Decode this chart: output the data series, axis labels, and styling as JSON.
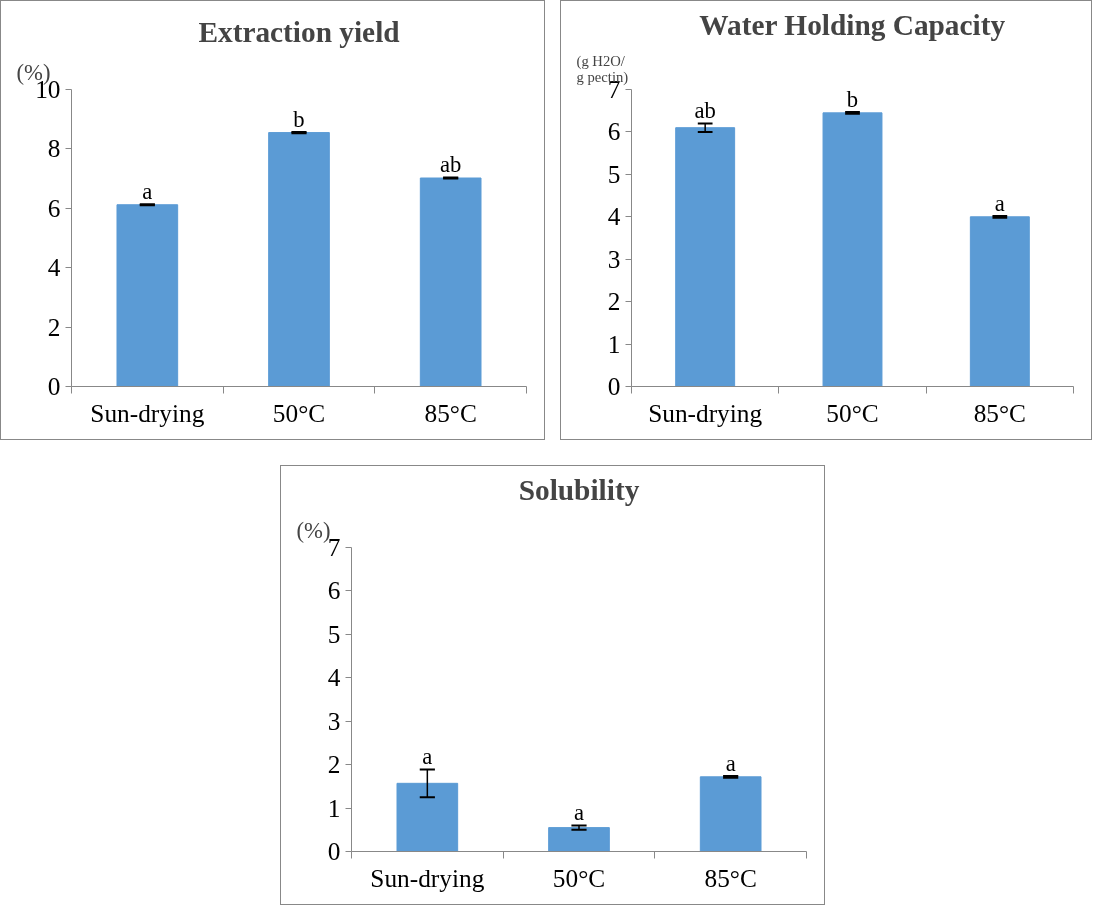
{
  "chart_data": [
    {
      "type": "bar",
      "title": "Extraction yield",
      "ylabel": "(%)",
      "categories": [
        "Sun-drying",
        "50°C",
        "85°C"
      ],
      "values": [
        6.12,
        8.55,
        7.02
      ],
      "errors": [
        0.02,
        0.02,
        0.02
      ],
      "color": "#5b9bd5",
      "ylim": [
        0,
        10
      ],
      "yticks": [
        0,
        2,
        4,
        6,
        8,
        10
      ],
      "grid": false,
      "annotations": [
        {
          "text": "a",
          "x": "Sun-drying",
          "y": 6.14
        },
        {
          "text": "b",
          "x": "50°C",
          "y": 8.57
        },
        {
          "text": "ab",
          "x": "85°C",
          "y": 7.04
        }
      ]
    },
    {
      "type": "bar",
      "title": "Water Holding Capacity",
      "ylabel": "(g H2O/\ng pectin)",
      "categories": [
        "Sun-drying",
        "50°C",
        "85°C"
      ],
      "values": [
        6.1,
        6.45,
        4.0
      ],
      "errors": [
        0.1,
        0.02,
        0.02
      ],
      "color": "#5b9bd5",
      "ylim": [
        0,
        7
      ],
      "yticks": [
        0,
        1,
        2,
        3,
        4,
        5,
        6,
        7
      ],
      "grid": false,
      "annotations": [
        {
          "text": "ab",
          "x": "Sun-drying",
          "y": 6.2
        },
        {
          "text": "b",
          "x": "50°C",
          "y": 6.47
        },
        {
          "text": "a",
          "x": "85°C",
          "y": 4.02
        }
      ]
    },
    {
      "type": "bar",
      "title": "Solubility",
      "ylabel": "(%)",
      "categories": [
        "Sun-drying",
        "50°C",
        "85°C"
      ],
      "values": [
        1.57,
        0.55,
        1.72
      ],
      "errors": [
        0.32,
        0.05,
        0.02
      ],
      "color": "#5b9bd5",
      "ylim": [
        0,
        7
      ],
      "yticks": [
        0,
        1,
        2,
        3,
        4,
        5,
        6,
        7
      ],
      "grid": false,
      "annotations": [
        {
          "text": "a",
          "x": "Sun-drying",
          "y": 1.89
        },
        {
          "text": "a",
          "x": "50°C",
          "y": 0.6
        },
        {
          "text": "a",
          "x": "85°C",
          "y": 1.74
        }
      ]
    }
  ]
}
